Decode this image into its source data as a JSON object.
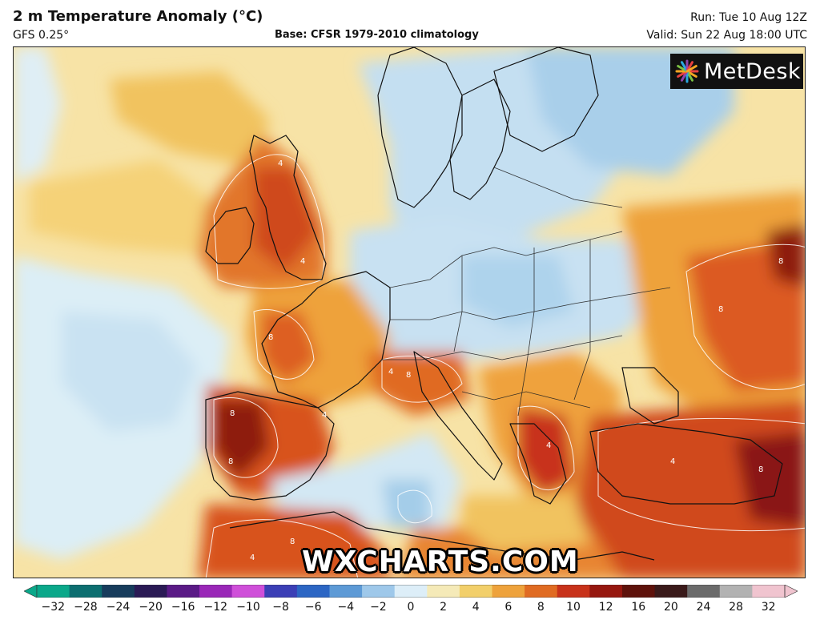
{
  "header": {
    "title": "2 m Temperature Anomaly (°C)",
    "model": "GFS 0.25°",
    "base": "Base: CFSR 1979-2010 climatology",
    "run": "Run: Tue 10 Aug 12Z",
    "valid": "Valid: Sun 22 Aug 18:00 UTC"
  },
  "logo": {
    "name": "MetDesk",
    "icon": "metdesk-starburst-icon",
    "colors": [
      "#e8423f",
      "#f5a623",
      "#7ac143",
      "#2aa9e0",
      "#8e44ad"
    ]
  },
  "watermark": "WXCHARTS.COM",
  "colorbar": {
    "labels": [
      "−32",
      "−28",
      "−24",
      "−20",
      "−16",
      "−12",
      "−10",
      "−8",
      "−6",
      "−4",
      "−2",
      "0",
      "2",
      "4",
      "6",
      "8",
      "10",
      "12",
      "16",
      "20",
      "24",
      "28",
      "32"
    ],
    "colors": [
      "#0aa88a",
      "#0c6e70",
      "#173c5c",
      "#2a1a55",
      "#5a1a86",
      "#9a27b8",
      "#cf4fd9",
      "#3b3fb6",
      "#2c66c4",
      "#5d9ad6",
      "#9ec8ea",
      "#ddeef8",
      "#f5eab8",
      "#f2cf6a",
      "#eea23b",
      "#e06b22",
      "#c8321a",
      "#96170f",
      "#5e120b",
      "#3a1a1a",
      "#6b6b6b",
      "#b2b2b2",
      "#f0c4cf"
    ]
  },
  "map_labels": [
    "4",
    "4",
    "8",
    "4",
    "8",
    "8",
    "4",
    "8",
    "4",
    "8",
    "8",
    "4",
    "8",
    "4",
    "8"
  ]
}
